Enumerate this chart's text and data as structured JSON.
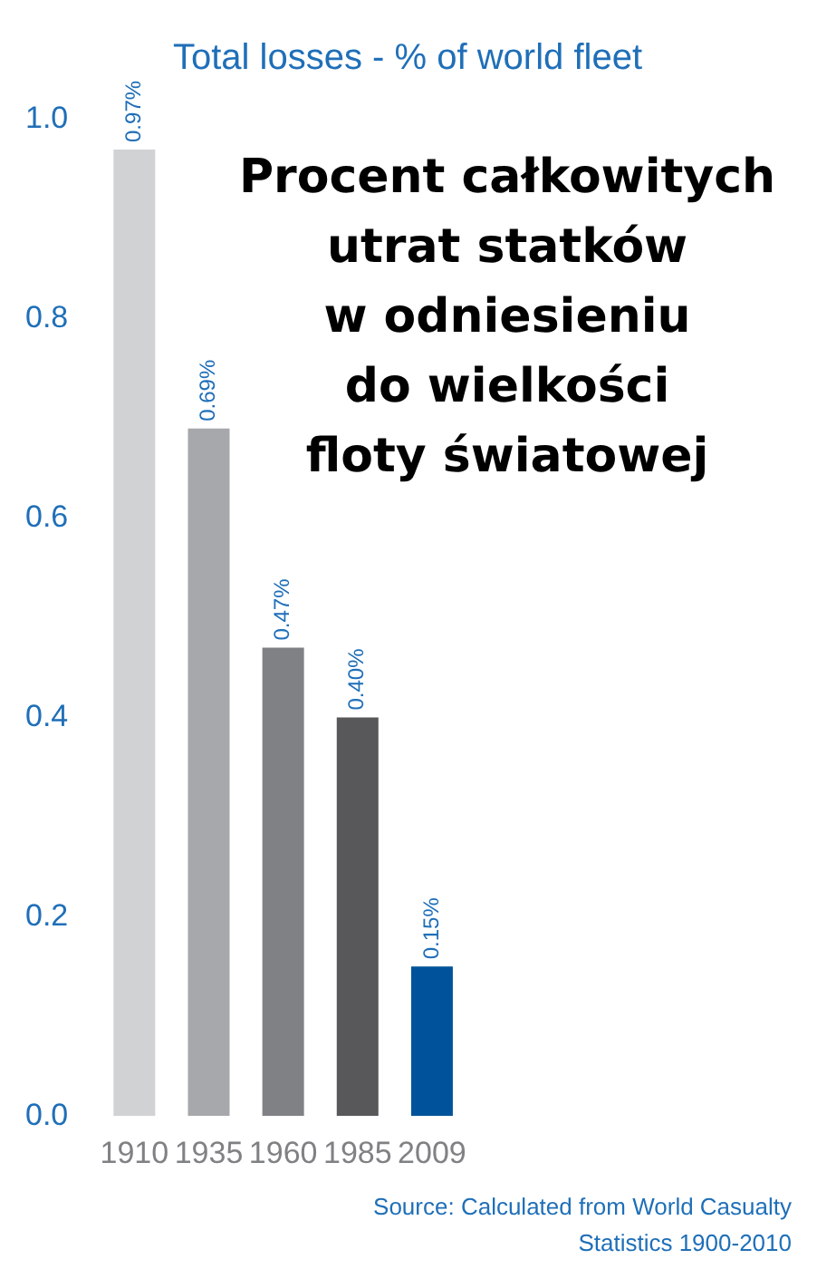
{
  "chart_data": {
    "type": "bar",
    "title": "Total losses - % of world fleet",
    "categories": [
      "1910",
      "1935",
      "1960",
      "1985",
      "2009"
    ],
    "values": [
      0.97,
      0.69,
      0.47,
      0.4,
      0.15
    ],
    "colors": [
      "#d1d2d4",
      "#a7a8ab",
      "#808184",
      "#58585b",
      "#00539b"
    ],
    "value_labels": [
      "0.97%",
      "0.69%",
      "0.47%",
      "0.40%",
      "0.15%"
    ],
    "ylim": [
      0,
      1
    ],
    "yticks": [
      {
        "value": 0,
        "label": "0.0"
      },
      0.2,
      0.4,
      0.6,
      0.8,
      {
        "value": 1,
        "label": "1.0"
      }
    ],
    "grid": false,
    "legend": false,
    "annotations": [
      "Procent całkowitych\nutrat statków\nw odniesieniu\ndo wielkości\nfloty światowej",
      "Source: Calculated from World Casualty Statistics 1900-2010"
    ]
  }
}
